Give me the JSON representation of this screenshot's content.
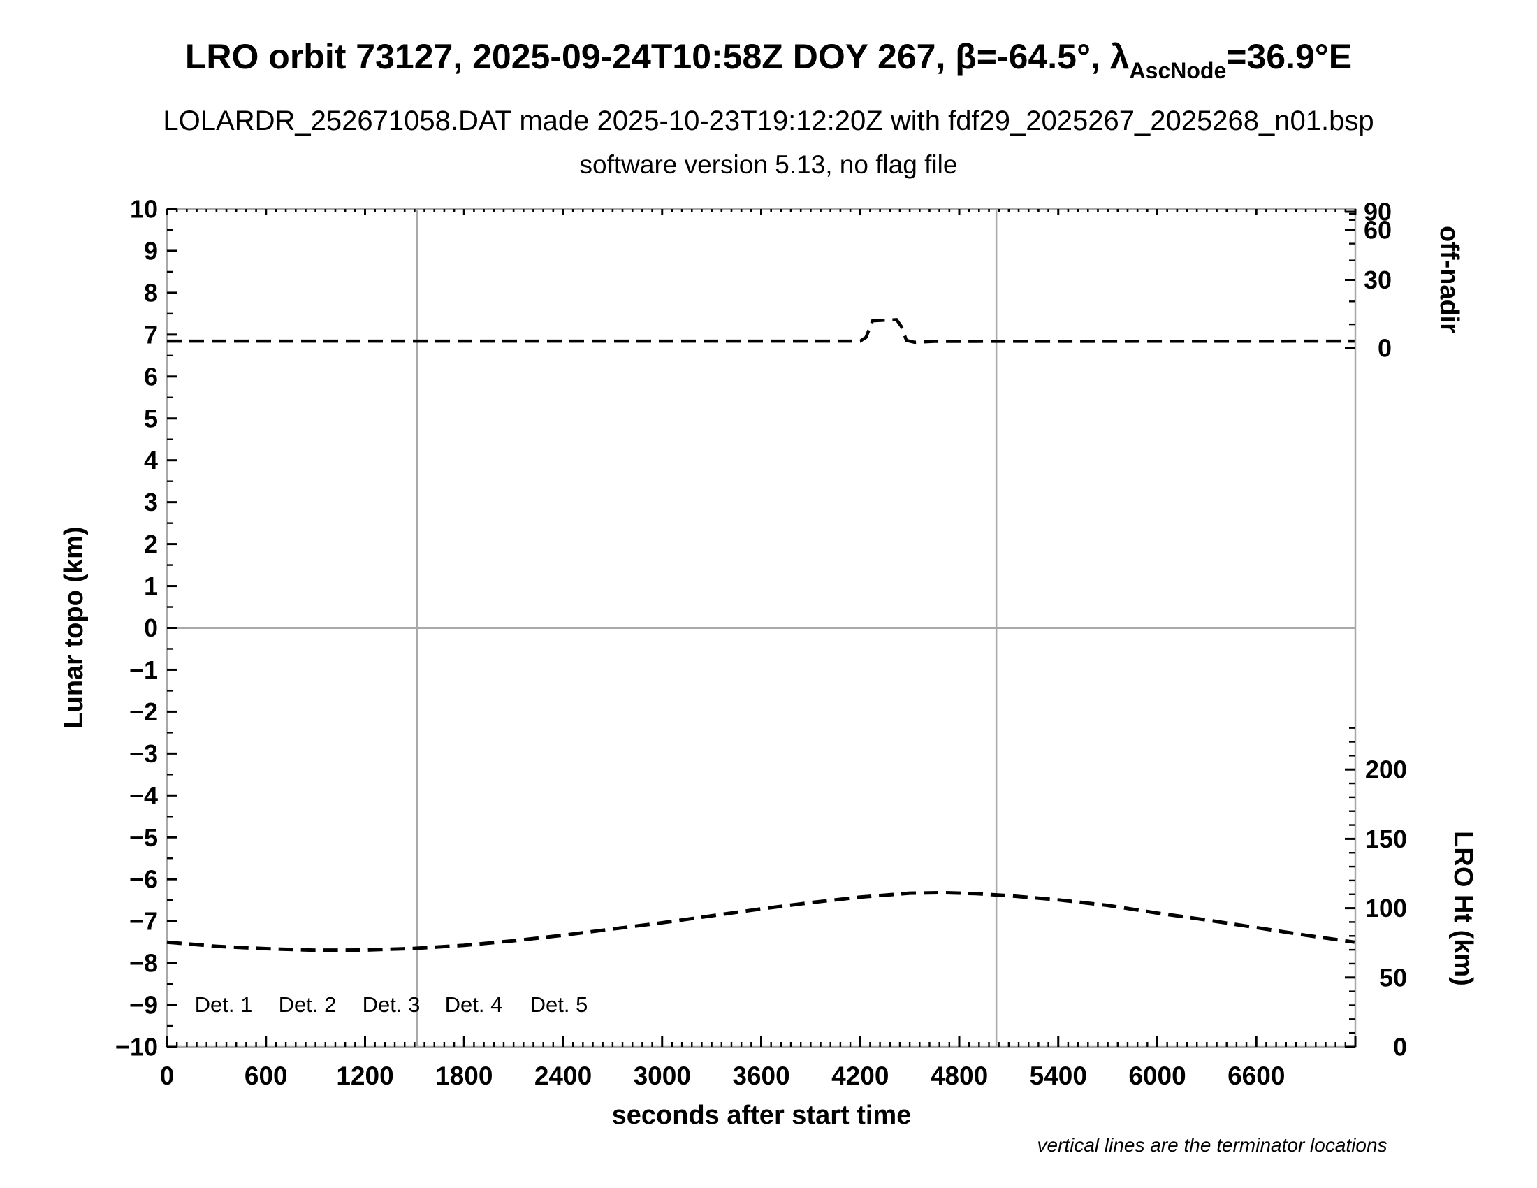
{
  "title": {
    "part1": "LRO orbit 73127, 2025-09-24T10:58Z DOY 267, β=-64.5°, λ",
    "sub": "AscNode",
    "part2": "=36.9°E"
  },
  "subtitle": "LOLARDR_252671058.DAT made 2025-10-23T19:12:20Z with fdf29_2025267_2025268_n01.bsp",
  "subtitle2": "software version 5.13, no flag file",
  "note": "vertical lines are the terminator locations",
  "chart_data": {
    "type": "line",
    "title": "LRO orbit 73127, 2025-09-24T10:58Z DOY 267, β=-64.5°, λAscNode=36.9°E",
    "xlabel": "seconds after start time",
    "ylabel_left": "Lunar topo (km)",
    "ylabel_right_top": "off-nadir",
    "ylabel_right_bottom": "LRO Ht (km)",
    "x_axis": {
      "min": 0,
      "max": 7200,
      "major_step": 600,
      "minor_step": 60,
      "labeled_ticks": [
        0,
        600,
        1200,
        1800,
        2400,
        3000,
        3600,
        4200,
        4800,
        5400,
        6000,
        6600
      ]
    },
    "y_left_axis": {
      "min": -10,
      "max": 10,
      "major_step": 1,
      "minor_step": 0.5,
      "zero_gridline": true
    },
    "y_right_top_axis": {
      "scale": "sine",
      "unit": "deg",
      "min": 0,
      "max": 90,
      "minor_step_deg": 10,
      "labeled_ticks": [
        90,
        60,
        30,
        0
      ]
    },
    "y_right_bottom_axis": {
      "unit": "km",
      "min": 0,
      "tick_extent": 230,
      "minor_step": 10,
      "labeled_ticks": [
        200,
        150,
        100,
        50,
        0
      ]
    },
    "terminator_lines_sec": [
      1515,
      5025
    ],
    "series": [
      {
        "name": "spacecraft off-nadir angle",
        "axis": "right-top",
        "style": "dashed",
        "color": "#000000",
        "points": [
          [
            0,
            2.9
          ],
          [
            4200,
            2.9
          ],
          [
            4235,
            4.5
          ],
          [
            4275,
            11.5
          ],
          [
            4420,
            12.0
          ],
          [
            4450,
            9.0
          ],
          [
            4480,
            3.2
          ],
          [
            4530,
            2.4
          ],
          [
            4650,
            2.8
          ],
          [
            7195,
            2.9
          ]
        ]
      },
      {
        "name": "LRO height",
        "axis": "right-bottom",
        "style": "dashed",
        "color": "#000000",
        "points": [
          [
            0,
            75.5
          ],
          [
            300,
            72.5
          ],
          [
            600,
            70.8
          ],
          [
            900,
            69.7
          ],
          [
            1200,
            69.8
          ],
          [
            1500,
            71.0
          ],
          [
            1800,
            73.2
          ],
          [
            2100,
            76.5
          ],
          [
            2400,
            80.5
          ],
          [
            2700,
            85.0
          ],
          [
            3000,
            89.5
          ],
          [
            3300,
            94.5
          ],
          [
            3600,
            99.5
          ],
          [
            3900,
            104.0
          ],
          [
            4200,
            108.0
          ],
          [
            4500,
            110.8
          ],
          [
            4700,
            111.2
          ],
          [
            4900,
            110.5
          ],
          [
            5100,
            109.0
          ],
          [
            5400,
            106.0
          ],
          [
            5700,
            102.0
          ],
          [
            6000,
            96.5
          ],
          [
            6300,
            91.5
          ],
          [
            6600,
            86.0
          ],
          [
            6900,
            80.5
          ],
          [
            7195,
            75.5
          ]
        ]
      }
    ],
    "legend": {
      "position": "bottom-left-inside",
      "items": [
        {
          "label": "Det. 1",
          "color": "#000000"
        },
        {
          "label": "Det. 2",
          "color": "#0000ff"
        },
        {
          "label": "Det. 3",
          "color": "#00e000"
        },
        {
          "label": "Det. 4",
          "color": "#ffa500"
        },
        {
          "label": "Det. 5",
          "color": "#ff0000"
        }
      ]
    },
    "colors": {
      "axis_box": "#a9a9a9",
      "gridline": "#a9a9a9",
      "terminator_line": "#a9a9a9",
      "ticks": "#000000"
    },
    "grid": "zero-line-and-terminators-only",
    "legend_values_note": "detector legend only, no per-detector traces visible"
  }
}
